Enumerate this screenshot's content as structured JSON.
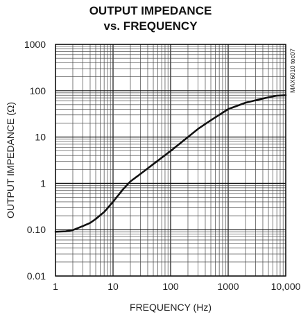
{
  "chart_data": {
    "type": "line",
    "title": "OUTPUT IMPEDANCE",
    "subtitle": "vs. FREQUENCY",
    "xlabel": "FREQUENCY (Hz)",
    "ylabel": "OUTPUT IMPEDANCE (Ω)",
    "annotation": "MAX6010 toc07",
    "x_scale": "log",
    "y_scale": "log",
    "xlim": [
      1,
      10000
    ],
    "ylim": [
      0.01,
      1000
    ],
    "x_ticks": [
      {
        "value": 1,
        "label": "1"
      },
      {
        "value": 10,
        "label": "10"
      },
      {
        "value": 100,
        "label": "100"
      },
      {
        "value": 1000,
        "label": "1000"
      },
      {
        "value": 10000,
        "label": "10,000"
      }
    ],
    "y_ticks": [
      {
        "value": 0.01,
        "label": "0.01"
      },
      {
        "value": 0.1,
        "label": "0.10"
      },
      {
        "value": 1,
        "label": "1"
      },
      {
        "value": 10,
        "label": "10"
      },
      {
        "value": 100,
        "label": "100"
      },
      {
        "value": 1000,
        "label": "1000"
      }
    ],
    "grid": true,
    "line_color": "#111111",
    "series": [
      {
        "x": [
          1,
          1.5,
          2,
          3,
          4,
          5,
          7,
          10,
          15,
          20,
          30,
          50,
          100,
          200,
          300,
          500,
          1000,
          2000,
          3000,
          5000,
          7000,
          10000
        ],
        "values": [
          0.09,
          0.092,
          0.098,
          0.12,
          0.14,
          0.17,
          0.24,
          0.4,
          0.75,
          1.1,
          1.6,
          2.6,
          5.0,
          10.0,
          15.0,
          23.0,
          40.0,
          55.0,
          62.0,
          72.0,
          78.0,
          80.0
        ]
      }
    ]
  }
}
